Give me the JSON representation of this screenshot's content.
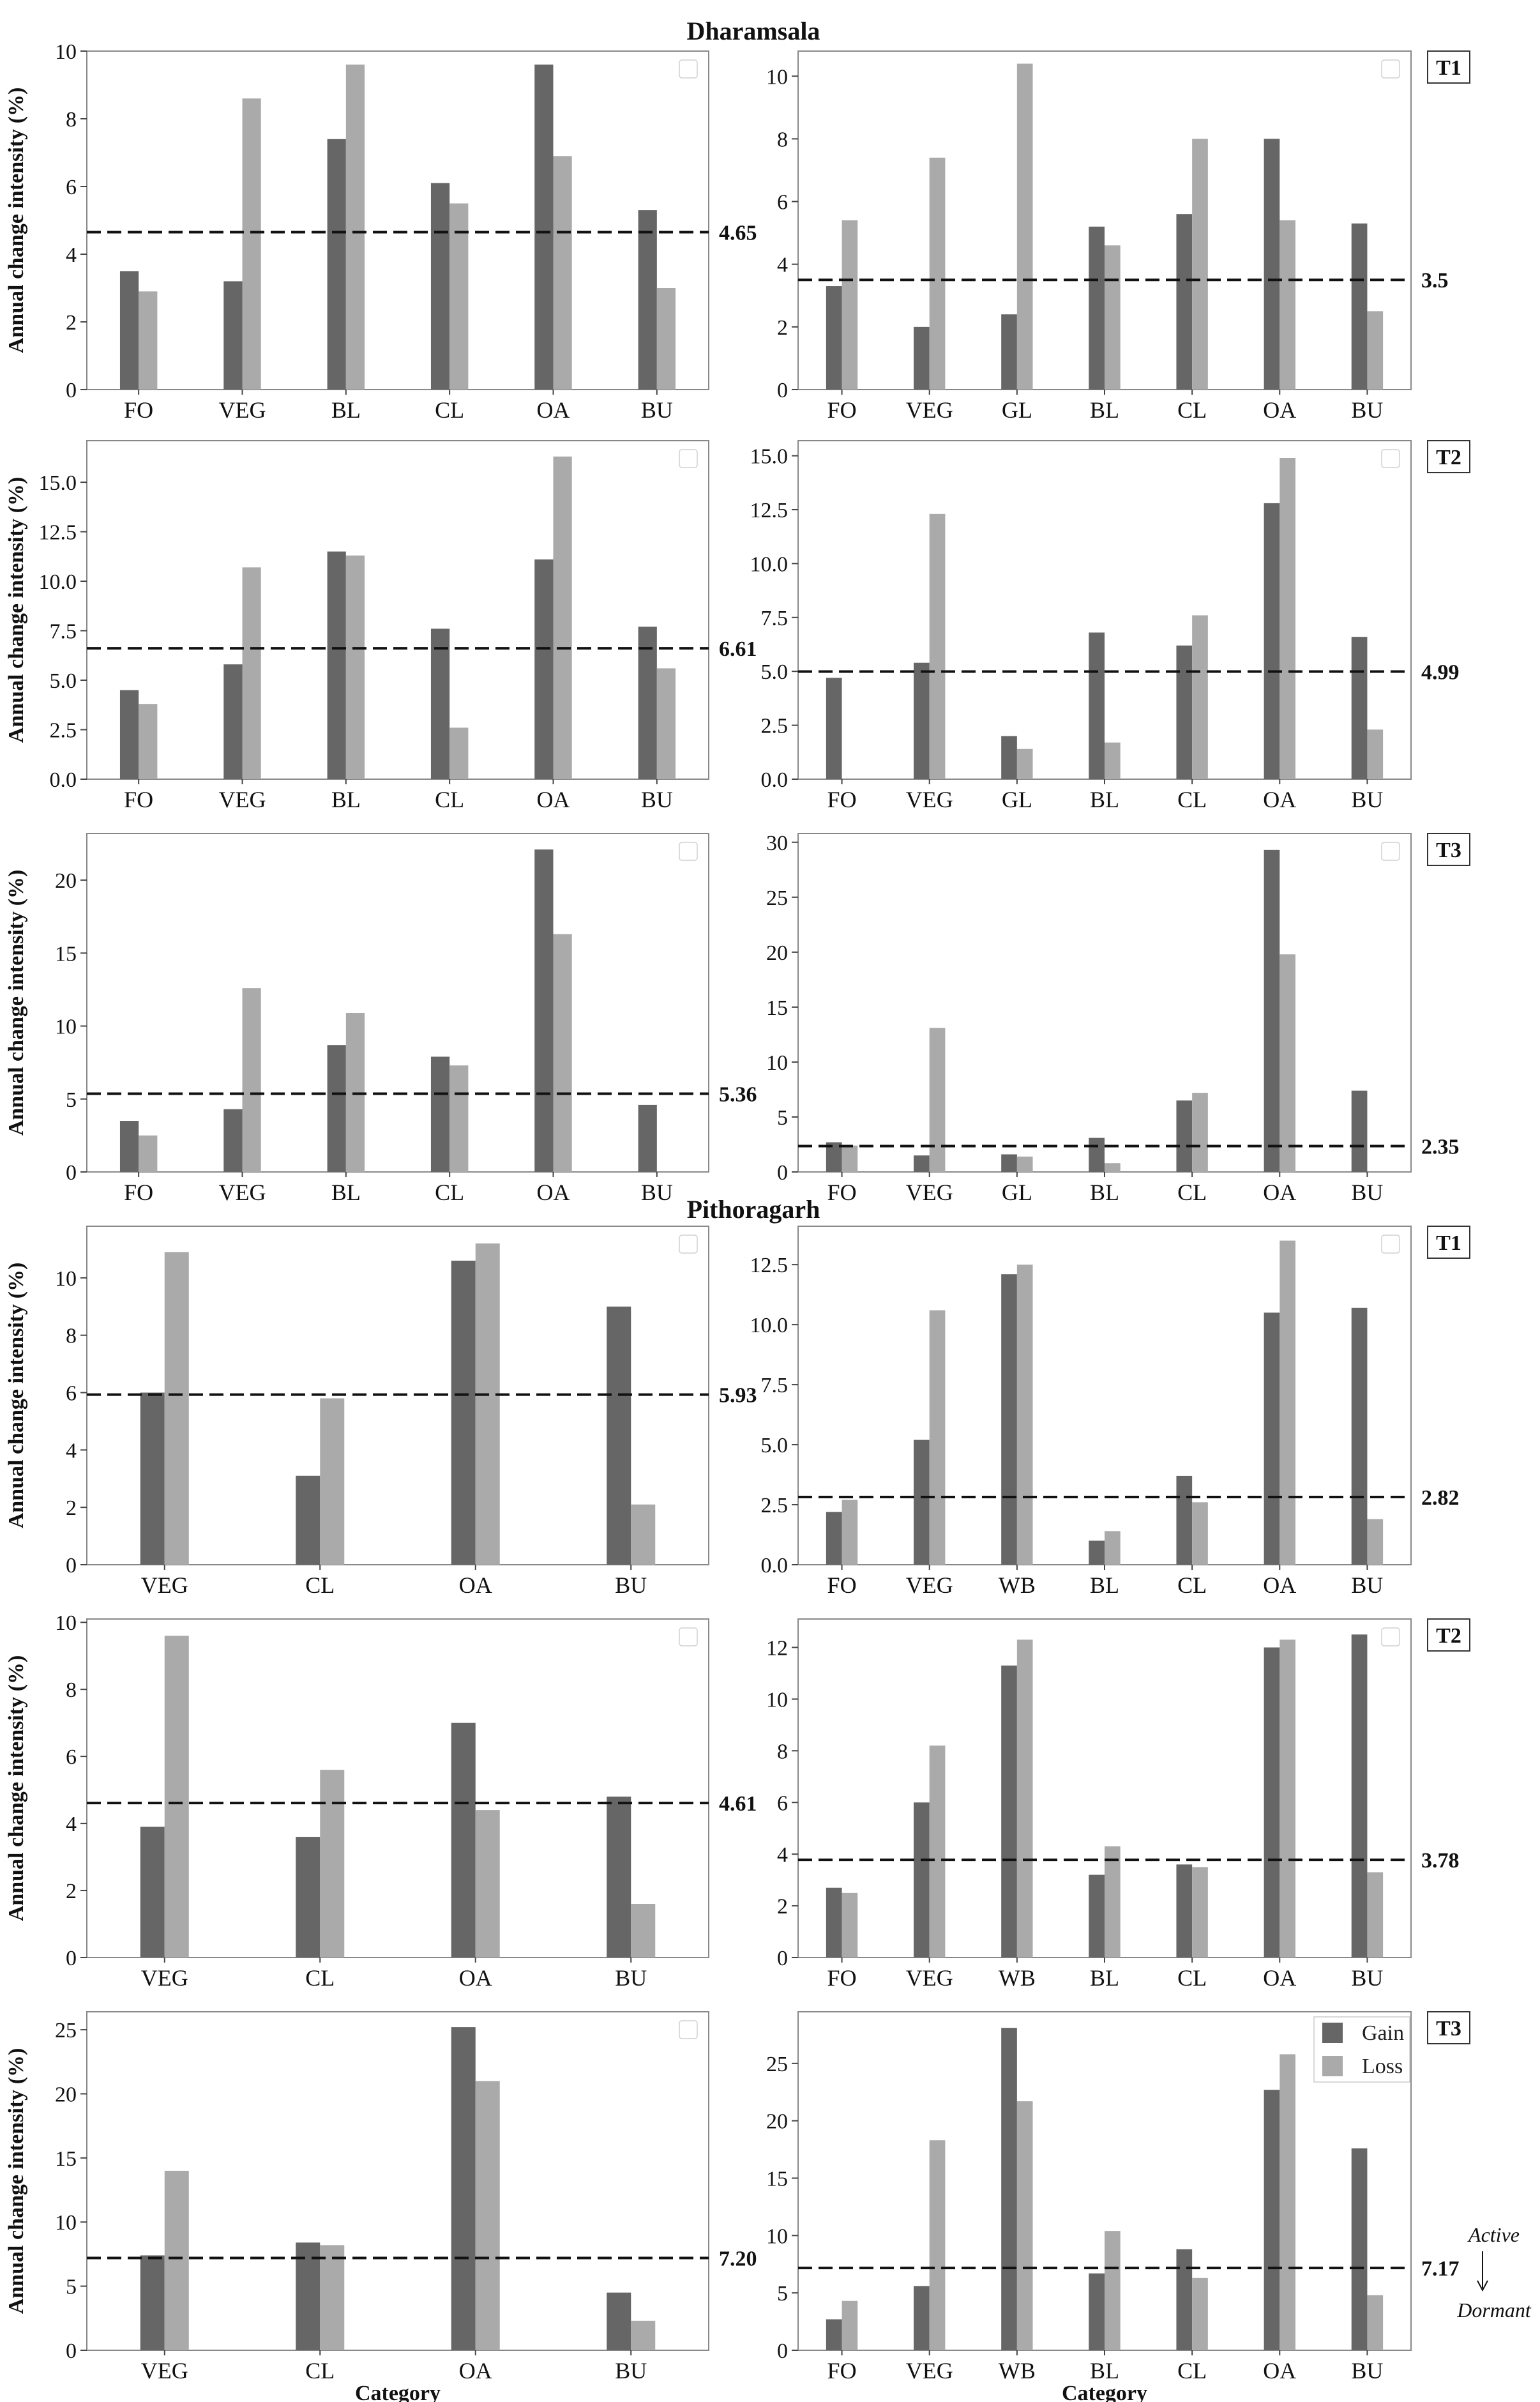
{
  "colors": {
    "gain": "#666666",
    "loss": "#aaaaaa",
    "axis": "#888888",
    "threshold": "#111111"
  },
  "legend": {
    "gain": "Gain",
    "loss": "Loss"
  },
  "annotations": {
    "active": "Active",
    "dormant": "Dormant"
  },
  "chart_data": [
    {
      "type": "bar",
      "region": "Dharamsala",
      "region_title": "Dharamsala",
      "panel": "left",
      "period": "T1",
      "categories": [
        "FO",
        "VEG",
        "BL",
        "CL",
        "OA",
        "BU"
      ],
      "series": [
        {
          "name": "Gain",
          "values": [
            3.5,
            3.2,
            7.4,
            6.1,
            9.6,
            5.3
          ]
        },
        {
          "name": "Loss",
          "values": [
            2.9,
            8.6,
            9.6,
            5.5,
            6.9,
            3.0
          ]
        }
      ],
      "threshold": 4.65,
      "threshold_label": "4.65",
      "ylabel": "Annual change intensity (%)",
      "xlabel": "",
      "ylim": [
        0,
        10
      ],
      "yticks": [
        0,
        2,
        4,
        6,
        8,
        10
      ]
    },
    {
      "type": "bar",
      "region": "Dharamsala",
      "panel": "right",
      "period": "T1",
      "period_label": "T1",
      "categories": [
        "FO",
        "VEG",
        "GL",
        "BL",
        "CL",
        "OA",
        "BU"
      ],
      "series": [
        {
          "name": "Gain",
          "values": [
            3.3,
            2.0,
            2.4,
            5.2,
            5.6,
            8.0,
            5.3
          ]
        },
        {
          "name": "Loss",
          "values": [
            5.4,
            7.4,
            10.4,
            4.6,
            8.0,
            5.4,
            2.5
          ]
        }
      ],
      "threshold": 3.5,
      "threshold_label": "3.5",
      "ylabel": "",
      "xlabel": "",
      "ylim": [
        0,
        10.8
      ],
      "yticks": [
        0,
        2,
        4,
        6,
        8,
        10
      ]
    },
    {
      "type": "bar",
      "region": "Dharamsala",
      "panel": "left",
      "period": "T2",
      "categories": [
        "FO",
        "VEG",
        "BL",
        "CL",
        "OA",
        "BU"
      ],
      "series": [
        {
          "name": "Gain",
          "values": [
            4.5,
            5.8,
            11.5,
            7.6,
            11.1,
            7.7
          ]
        },
        {
          "name": "Loss",
          "values": [
            3.8,
            10.7,
            11.3,
            2.6,
            16.3,
            5.6
          ]
        }
      ],
      "threshold": 6.61,
      "threshold_label": "6.61",
      "ylabel": "Annual change intensity (%)",
      "xlabel": "",
      "ylim": [
        0,
        17.1
      ],
      "yticks": [
        0.0,
        2.5,
        5.0,
        7.5,
        10.0,
        12.5,
        15.0
      ]
    },
    {
      "type": "bar",
      "region": "Dharamsala",
      "panel": "right",
      "period": "T2",
      "period_label": "T2",
      "categories": [
        "FO",
        "VEG",
        "GL",
        "BL",
        "CL",
        "OA",
        "BU"
      ],
      "series": [
        {
          "name": "Gain",
          "values": [
            4.7,
            5.4,
            2.0,
            6.8,
            6.2,
            12.8,
            6.6
          ]
        },
        {
          "name": "Loss",
          "values": [
            0,
            12.3,
            1.4,
            1.7,
            7.6,
            14.9,
            2.3
          ]
        }
      ],
      "threshold": 4.99,
      "threshold_label": "4.99",
      "ylabel": "",
      "xlabel": "",
      "ylim": [
        0,
        15.7
      ],
      "yticks": [
        0.0,
        2.5,
        5.0,
        7.5,
        10.0,
        12.5,
        15.0
      ]
    },
    {
      "type": "bar",
      "region": "Dharamsala",
      "panel": "left",
      "period": "T3",
      "categories": [
        "FO",
        "VEG",
        "BL",
        "CL",
        "OA",
        "BU"
      ],
      "series": [
        {
          "name": "Gain",
          "values": [
            3.5,
            4.3,
            8.7,
            7.9,
            22.1,
            4.6
          ]
        },
        {
          "name": "Loss",
          "values": [
            2.5,
            12.6,
            10.9,
            7.3,
            16.3,
            0
          ]
        }
      ],
      "threshold": 5.36,
      "threshold_label": "5.36",
      "ylabel": "Annual change intensity (%)",
      "xlabel": "",
      "ylim": [
        0,
        23.2
      ],
      "yticks": [
        0,
        5,
        10,
        15,
        20
      ]
    },
    {
      "type": "bar",
      "region": "Dharamsala",
      "panel": "right",
      "period": "T3",
      "period_label": "T3",
      "categories": [
        "FO",
        "VEG",
        "GL",
        "BL",
        "CL",
        "OA",
        "BU"
      ],
      "series": [
        {
          "name": "Gain",
          "values": [
            2.7,
            1.5,
            1.6,
            3.1,
            6.5,
            29.3,
            7.4
          ]
        },
        {
          "name": "Loss",
          "values": [
            2.4,
            13.1,
            1.4,
            0.8,
            7.2,
            19.8,
            0
          ]
        }
      ],
      "threshold": 2.35,
      "threshold_label": "2.35",
      "ylabel": "",
      "xlabel": "",
      "ylim": [
        0,
        30.8
      ],
      "yticks": [
        0,
        5,
        10,
        15,
        20,
        25,
        30
      ]
    },
    {
      "type": "bar",
      "region": "Pithoragarh",
      "region_title": "Pithoragarh",
      "panel": "left",
      "period": "T1",
      "categories": [
        "VEG",
        "CL",
        "OA",
        "BU"
      ],
      "series": [
        {
          "name": "Gain",
          "values": [
            6.0,
            3.1,
            10.6,
            9.0
          ]
        },
        {
          "name": "Loss",
          "values": [
            10.9,
            5.8,
            11.2,
            2.1
          ]
        }
      ],
      "threshold": 5.93,
      "threshold_label": "5.93",
      "ylabel": "Annual change intensity (%)",
      "xlabel": "",
      "ylim": [
        0,
        11.8
      ],
      "yticks": [
        0,
        2,
        4,
        6,
        8,
        10
      ]
    },
    {
      "type": "bar",
      "region": "Pithoragarh",
      "panel": "right",
      "period": "T1",
      "period_label": "T1",
      "categories": [
        "FO",
        "VEG",
        "WB",
        "BL",
        "CL",
        "OA",
        "BU"
      ],
      "series": [
        {
          "name": "Gain",
          "values": [
            2.2,
            5.2,
            12.1,
            1.0,
            3.7,
            10.5,
            10.7
          ]
        },
        {
          "name": "Loss",
          "values": [
            2.7,
            10.6,
            12.5,
            1.4,
            2.6,
            13.5,
            1.9
          ]
        }
      ],
      "threshold": 2.82,
      "threshold_label": "2.82",
      "ylabel": "",
      "xlabel": "",
      "ylim": [
        0,
        14.1
      ],
      "yticks": [
        0.0,
        2.5,
        5.0,
        7.5,
        10.0,
        12.5
      ]
    },
    {
      "type": "bar",
      "region": "Pithoragarh",
      "panel": "left",
      "period": "T2",
      "categories": [
        "VEG",
        "CL",
        "OA",
        "BU"
      ],
      "series": [
        {
          "name": "Gain",
          "values": [
            3.9,
            3.6,
            7.0,
            4.8
          ]
        },
        {
          "name": "Loss",
          "values": [
            9.6,
            5.6,
            4.4,
            1.6
          ]
        }
      ],
      "threshold": 4.61,
      "threshold_label": "4.61",
      "ylabel": "Annual change intensity (%)",
      "xlabel": "",
      "ylim": [
        0,
        10.1
      ],
      "yticks": [
        0,
        2,
        4,
        6,
        8,
        10
      ]
    },
    {
      "type": "bar",
      "region": "Pithoragarh",
      "panel": "right",
      "period": "T2",
      "period_label": "T2",
      "categories": [
        "FO",
        "VEG",
        "WB",
        "BL",
        "CL",
        "OA",
        "BU"
      ],
      "series": [
        {
          "name": "Gain",
          "values": [
            2.7,
            6.0,
            11.3,
            3.2,
            3.6,
            12.0,
            12.5
          ]
        },
        {
          "name": "Loss",
          "values": [
            2.5,
            8.2,
            12.3,
            4.3,
            3.5,
            12.3,
            3.3
          ]
        }
      ],
      "threshold": 3.78,
      "threshold_label": "3.78",
      "ylabel": "",
      "xlabel": "",
      "ylim": [
        0,
        13.1
      ],
      "yticks": [
        0,
        2,
        4,
        6,
        8,
        10,
        12
      ]
    },
    {
      "type": "bar",
      "region": "Pithoragarh",
      "panel": "left",
      "period": "T3",
      "categories": [
        "VEG",
        "CL",
        "OA",
        "BU"
      ],
      "series": [
        {
          "name": "Gain",
          "values": [
            7.4,
            8.4,
            25.2,
            4.5
          ]
        },
        {
          "name": "Loss",
          "values": [
            14.0,
            8.2,
            21.0,
            2.3
          ]
        }
      ],
      "threshold": 7.2,
      "threshold_label": "7.20",
      "ylabel": "Annual change intensity (%)",
      "xlabel": "Category",
      "ylim": [
        0,
        26.4
      ],
      "yticks": [
        0,
        5,
        10,
        15,
        20,
        25
      ]
    },
    {
      "type": "bar",
      "region": "Pithoragarh",
      "panel": "right",
      "period": "T3",
      "period_label": "T3",
      "categories": [
        "FO",
        "VEG",
        "WB",
        "BL",
        "CL",
        "OA",
        "BU"
      ],
      "series": [
        {
          "name": "Gain",
          "values": [
            2.7,
            5.6,
            28.1,
            6.7,
            8.8,
            22.7,
            17.6
          ]
        },
        {
          "name": "Loss",
          "values": [
            4.3,
            18.3,
            21.7,
            10.4,
            6.3,
            25.8,
            4.8
          ]
        }
      ],
      "threshold": 7.17,
      "threshold_label": "7.17",
      "ylabel": "",
      "xlabel": "Category",
      "ylim": [
        0,
        29.5
      ],
      "yticks": [
        0,
        5,
        10,
        15,
        20,
        25
      ],
      "legend": true
    }
  ]
}
